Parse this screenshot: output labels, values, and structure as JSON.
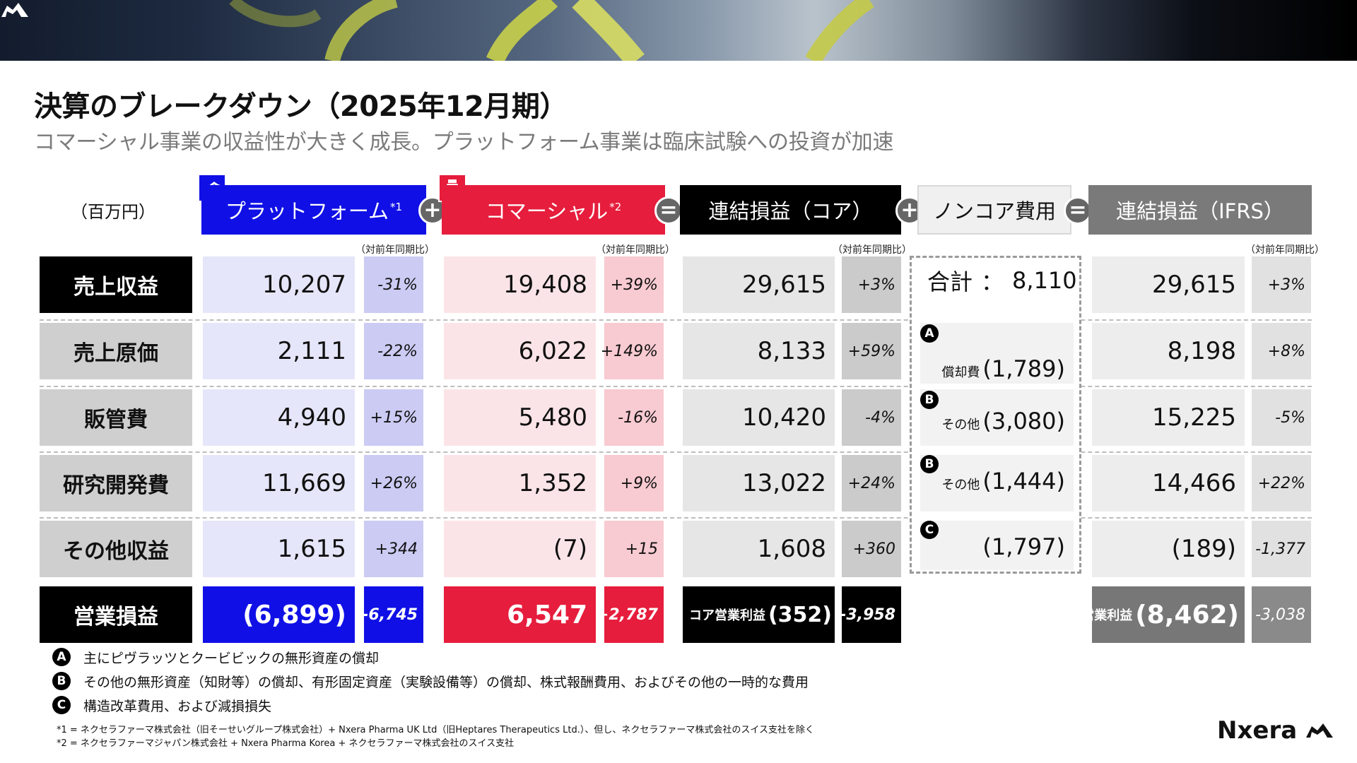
{
  "title": "決算のブレークダウン（2025年12月期）",
  "subtitle": "コマーシャル事業の収益性が大きく成長。プラットフォーム事業は臨床試験への投資が加速",
  "unit_label": "（百万円）",
  "columns": {
    "platform": {
      "label": "プラットフォーム",
      "note": "*1"
    },
    "commercial": {
      "label": "コマーシャル",
      "note": "*2"
    },
    "core": {
      "label": "連結損益（コア）"
    },
    "noncore": {
      "label": "ノンコア費用"
    },
    "ifrs": {
      "label": "連結損益（IFRS）"
    }
  },
  "operators": {
    "plus": "+",
    "equals": "="
  },
  "yoy_label": "（対前年同期比）",
  "rows": [
    {
      "label": "売上収益",
      "platform": "10,207",
      "platform_pct": "-31%",
      "commercial": "19,408",
      "commercial_pct": "+39%",
      "core": "29,615",
      "core_pct": "+3%",
      "ifrs": "29,615",
      "ifrs_pct": "+3%"
    },
    {
      "label": "売上原価",
      "platform": "2,111",
      "platform_pct": "-22%",
      "commercial": "6,022",
      "commercial_pct": "+149%",
      "core": "8,133",
      "core_pct": "+59%",
      "ifrs": "8,198",
      "ifrs_pct": "+8%"
    },
    {
      "label": "販管費",
      "platform": "4,940",
      "platform_pct": "+15%",
      "commercial": "5,480",
      "commercial_pct": "-16%",
      "core": "10,420",
      "core_pct": "-4%",
      "ifrs": "15,225",
      "ifrs_pct": "-5%"
    },
    {
      "label": "研究開発費",
      "platform": "11,669",
      "platform_pct": "+26%",
      "commercial": "1,352",
      "commercial_pct": "+9%",
      "core": "13,022",
      "core_pct": "+24%",
      "ifrs": "14,466",
      "ifrs_pct": "+22%"
    },
    {
      "label": "その他収益",
      "platform": "1,615",
      "platform_pct": "+344",
      "commercial": "(7)",
      "commercial_pct": "+15",
      "core": "1,608",
      "core_pct": "+360",
      "ifrs": "(189)",
      "ifrs_pct": "-1,377"
    }
  ],
  "operating": {
    "label": "営業損益",
    "platform": "(6,899)",
    "platform_pct": "-6,745",
    "commercial": "6,547",
    "commercial_pct": "+2,787",
    "core_prefix": "コア営業利益",
    "core": "(352)",
    "core_pct": "-3,958",
    "ifrs_prefix": "営業利益",
    "ifrs": "(8,462)",
    "ifrs_pct": "-3,038"
  },
  "noncore": {
    "total_label": "合計",
    "total_sep": "：",
    "total_value": "8,110",
    "items": [
      {
        "badge": "A",
        "prefix": "償却費",
        "value": "(1,789)"
      },
      {
        "badge": "B",
        "prefix": "その他",
        "value": "(3,080)"
      },
      {
        "badge": "B",
        "prefix": "その他",
        "value": "(1,444)"
      },
      {
        "badge": "C",
        "prefix": "",
        "value": "(1,797)"
      }
    ]
  },
  "notes": [
    {
      "badge": "A",
      "text": "主にピヴラッツとクービビックの無形資産の償却"
    },
    {
      "badge": "B",
      "text": "その他の無形資産（知財等）の償却、有形固定資産（実験設備等）の償却、株式報酬費用、およびその他の一時的な費用"
    },
    {
      "badge": "C",
      "text": "構造改革費用、および減損損失"
    }
  ],
  "footnotes": [
    "*1 = ネクセラファーマ株式会社（旧そーせいグループ株式会社）+ Nxera Pharma UK Ltd（旧Heptares Therapeutics Ltd.）、但し、ネクセラファーマ株式会社のスイス支社を除く",
    "*2 = ネクセラファーマジャパン株式会社 + Nxera Pharma Korea + ネクセラファーマ株式会社のスイス支社"
  ],
  "brand": "Nxera",
  "colors": {
    "platform": "#1010e6",
    "commercial": "#e61d3c",
    "core": "#000000",
    "ifrs": "#7a7a7a"
  }
}
